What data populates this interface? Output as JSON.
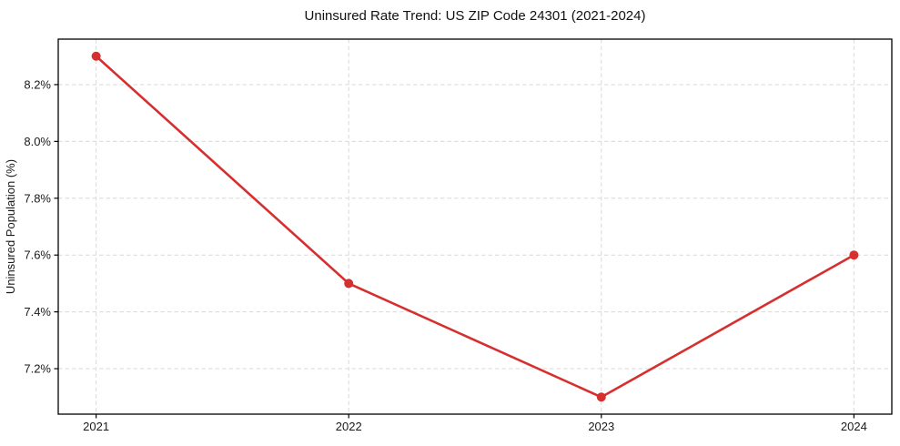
{
  "figure": {
    "background": "#ffffff"
  },
  "chart_data": {
    "type": "line",
    "title": "Uninsured Rate Trend: US ZIP Code 24301 (2021-2024)",
    "xlabel": "",
    "ylabel": "Uninsured Population (%)",
    "x": [
      2021,
      2022,
      2023,
      2024
    ],
    "x_tick_labels": [
      "2021",
      "2022",
      "2023",
      "2024"
    ],
    "values": [
      8.3,
      7.5,
      7.1,
      7.6
    ],
    "y_ticks": [
      7.2,
      7.4,
      7.6,
      7.8,
      8.0,
      8.2
    ],
    "y_tick_labels": [
      "7.2%",
      "7.4%",
      "7.6%",
      "7.8%",
      "8.0%",
      "8.2%"
    ],
    "xlim": [
      2020.85,
      2024.15
    ],
    "ylim": [
      7.04,
      8.36
    ],
    "grid": true,
    "grid_style": "dashed",
    "legend": false,
    "line_color": "#d62f2f",
    "marker": "circle",
    "grid_color": "#d9d9d9",
    "axis_color": "#000000",
    "text_color": "#1a1a1a"
  }
}
